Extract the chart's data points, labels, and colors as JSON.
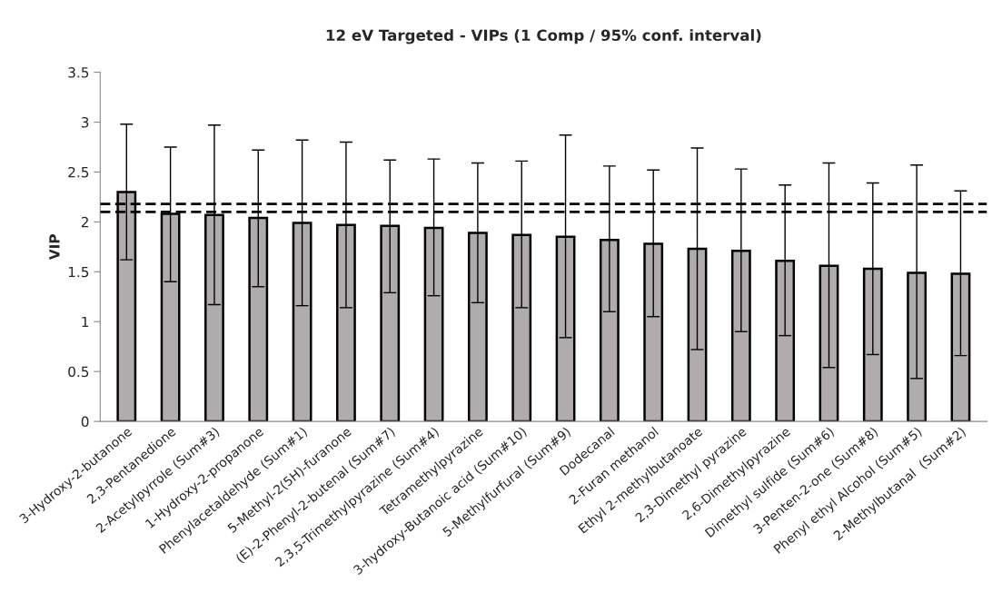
{
  "chart_data": {
    "type": "bar",
    "title": "12 eV Targeted - VIPs (1 Comp / 95% conf. interval)",
    "ylabel": "VIP",
    "categories": [
      "3-Hydroxy-2-butanone",
      "2,3-Pentanedione",
      "2-Acetylpyrrole (Sum#3)",
      "1-Hydroxy-2-propanone",
      "Phenylacetaldehyde (Sum#1)",
      "5-Methyl-2(5H)-furanone",
      "(E)-2-Phenyl-2-butenal (Sum#7)",
      "2,3,5-Trimethylpyrazine (Sum#4)",
      "Tetramethylpyrazine",
      "3-hydroxy-Butanoic acid (Sum#10)",
      "5-Methylfurfural (Sum#9)",
      "Dodecanal",
      "2-Furan methanol",
      "Ethyl 2-methylbutanoate",
      "2,3-Dimethyl pyrazine",
      "2,6-Dimethylpyrazine",
      "Dimethyl sulfide (Sum#6)",
      "3-Penten-2-one (Sum#8)",
      "Phenyl ethyl Alcohol (Sum#5)",
      "2-Methylbutanal  (Sum#2)"
    ],
    "values": [
      2.3,
      2.08,
      2.07,
      2.04,
      1.99,
      1.97,
      1.96,
      1.94,
      1.89,
      1.87,
      1.85,
      1.82,
      1.78,
      1.73,
      1.71,
      1.61,
      1.56,
      1.53,
      1.49,
      1.48
    ],
    "errors": [
      [
        1.62,
        2.98
      ],
      [
        1.4,
        2.75
      ],
      [
        1.17,
        2.97
      ],
      [
        1.35,
        2.72
      ],
      [
        1.16,
        2.82
      ],
      [
        1.14,
        2.8
      ],
      [
        1.29,
        2.62
      ],
      [
        1.26,
        2.63
      ],
      [
        1.19,
        2.59
      ],
      [
        1.14,
        2.61
      ],
      [
        0.84,
        2.87
      ],
      [
        1.1,
        2.56
      ],
      [
        1.05,
        2.52
      ],
      [
        0.72,
        2.74
      ],
      [
        0.9,
        2.53
      ],
      [
        0.86,
        2.37
      ],
      [
        0.54,
        2.59
      ],
      [
        0.67,
        2.39
      ],
      [
        0.43,
        2.57
      ],
      [
        0.66,
        2.31
      ]
    ],
    "color": "#b0acab",
    "ylim": [
      0,
      3.5
    ],
    "yticks": [
      0,
      0.5,
      1,
      1.5,
      2,
      2.5,
      3,
      3.5
    ],
    "ref_lines": [
      {
        "axis": "y",
        "value": 2.18,
        "color": "#000000",
        "line_style": "dashed"
      },
      {
        "axis": "y",
        "value": 2.1,
        "color": "#000000",
        "line_style": "dashed"
      }
    ],
    "grid": false,
    "legend": false
  }
}
